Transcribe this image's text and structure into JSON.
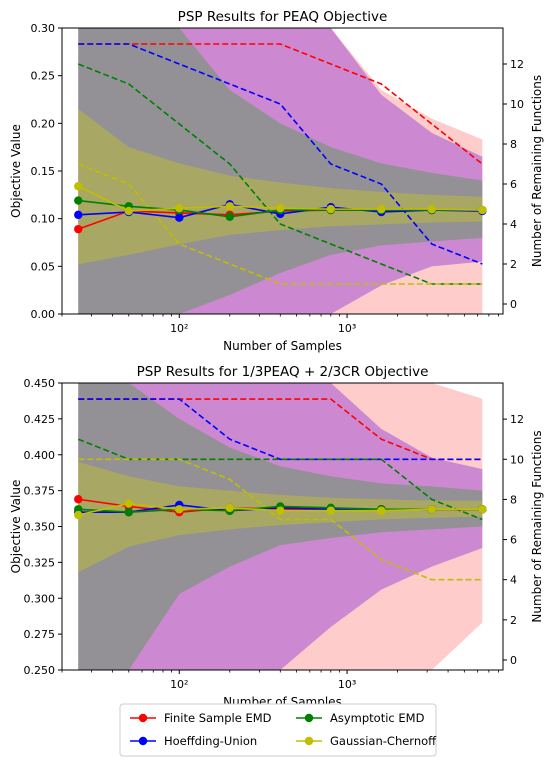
{
  "legend": {
    "items": [
      {
        "label": "Finite Sample EMD",
        "color": "#ff0000"
      },
      {
        "label": "Asymptotic EMD",
        "color": "#008000"
      },
      {
        "label": "Hoeffding-Union",
        "color": "#0000ff"
      },
      {
        "label": "Gaussian-Chernoff",
        "color": "#bfbf00"
      }
    ]
  },
  "chart_data": [
    {
      "type": "line",
      "title": "PSP Results for PEAQ Objective",
      "xlabel": "Number of Samples",
      "ylabel": "Objective Value",
      "y2label": "Number of Remaining Functions",
      "xscale": "log",
      "xlim": [
        20,
        8500
      ],
      "ylim": [
        0.0,
        0.3
      ],
      "y2lim": [
        -0.5,
        13.8
      ],
      "x_ticks": [
        100,
        1000
      ],
      "x_tick_labels": [
        "10²",
        "10³"
      ],
      "y_ticks": [
        0.0,
        0.05,
        0.1,
        0.15,
        0.2,
        0.25,
        0.3
      ],
      "y_tick_labels": [
        "0.00",
        "0.05",
        "0.10",
        "0.15",
        "0.20",
        "0.25",
        "0.30"
      ],
      "y2_ticks": [
        0,
        2,
        4,
        6,
        8,
        10,
        12
      ],
      "y2_tick_labels": [
        "0",
        "2",
        "4",
        "6",
        "8",
        "10",
        "12"
      ],
      "x": [
        25,
        50,
        100,
        200,
        400,
        800,
        1600,
        3200,
        6400
      ],
      "series": [
        {
          "name": "Finite Sample EMD",
          "color": "#ff0000",
          "values": [
            0.089,
            0.108,
            0.106,
            0.104,
            0.108,
            0.109,
            0.109,
            0.109,
            0.109
          ]
        },
        {
          "name": "Hoeffding-Union",
          "color": "#0000ff",
          "values": [
            0.104,
            0.107,
            0.101,
            0.115,
            0.105,
            0.112,
            0.107,
            0.109,
            0.108
          ]
        },
        {
          "name": "Asymptotic EMD",
          "color": "#008000",
          "values": [
            0.119,
            0.113,
            0.109,
            0.102,
            0.109,
            0.109,
            0.109,
            0.109,
            0.109
          ]
        },
        {
          "name": "Gaussian-Chernoff",
          "color": "#bfbf00",
          "values": [
            0.134,
            0.108,
            0.111,
            0.113,
            0.111,
            0.11,
            0.11,
            0.11,
            0.109
          ]
        }
      ],
      "bands": [
        {
          "series": "Finite Sample EMD",
          "color": "#ff9999",
          "upper": [
            0.3,
            0.3,
            0.3,
            0.3,
            0.3,
            0.3,
            0.235,
            0.205,
            0.183
          ],
          "lower": [
            0.0,
            0.0,
            0.0,
            0.0,
            0.0,
            0.0,
            0.0,
            0.0,
            0.0
          ]
        },
        {
          "series": "Hoeffding-Union",
          "color": "#9a46d8",
          "upper": [
            0.3,
            0.3,
            0.3,
            0.3,
            0.3,
            0.3,
            0.23,
            0.19,
            0.165
          ],
          "lower": [
            0.0,
            0.0,
            0.0,
            0.0,
            0.0,
            0.0,
            0.03,
            0.05,
            0.055
          ]
        },
        {
          "series": "Asymptotic EMD",
          "color": "#5a9a5a",
          "upper": [
            0.3,
            0.3,
            0.3,
            0.235,
            0.2,
            0.175,
            0.158,
            0.148,
            0.14
          ],
          "lower": [
            0.0,
            0.0,
            0.0,
            0.02,
            0.043,
            0.062,
            0.072,
            0.076,
            0.08
          ]
        },
        {
          "series": "Gaussian-Chernoff",
          "color": "#bdbd30",
          "upper": [
            0.215,
            0.175,
            0.158,
            0.145,
            0.138,
            0.132,
            0.128,
            0.125,
            0.123
          ],
          "lower": [
            0.052,
            0.062,
            0.073,
            0.083,
            0.088,
            0.092,
            0.094,
            0.096,
            0.097
          ]
        }
      ],
      "remaining_functions": [
        {
          "series": "Finite Sample EMD",
          "color": "#ff0000",
          "values": [
            13,
            13,
            13,
            13,
            13,
            12,
            11,
            9,
            7
          ]
        },
        {
          "series": "Hoeffding-Union",
          "color": "#0000ff",
          "values": [
            13,
            13,
            12,
            11,
            10,
            7,
            6,
            3,
            2
          ]
        },
        {
          "series": "Asymptotic EMD",
          "color": "#008000",
          "values": [
            12,
            11,
            9,
            7,
            4,
            3,
            2,
            1,
            1
          ]
        },
        {
          "series": "Gaussian-Chernoff",
          "color": "#bfbf00",
          "values": [
            7,
            6,
            3,
            2,
            1,
            1,
            1,
            1,
            1
          ]
        }
      ],
      "grid": false
    },
    {
      "type": "line",
      "title": "PSP Results for 1/3PEAQ + 2/3CR Objective",
      "xlabel": "Number of Samples",
      "ylabel": "Objective Value",
      "y2label": "Number of Remaining Functions",
      "xscale": "log",
      "xlim": [
        20,
        8500
      ],
      "ylim": [
        0.25,
        0.45
      ],
      "y2lim": [
        -0.5,
        13.8
      ],
      "x_ticks": [
        100,
        1000
      ],
      "x_tick_labels": [
        "10²",
        "10³"
      ],
      "y_ticks": [
        0.25,
        0.275,
        0.3,
        0.325,
        0.35,
        0.375,
        0.4,
        0.425,
        0.45
      ],
      "y_tick_labels": [
        "0.250",
        "0.275",
        "0.300",
        "0.325",
        "0.350",
        "0.375",
        "0.400",
        "0.425",
        "0.450"
      ],
      "y2_ticks": [
        0,
        2,
        4,
        6,
        8,
        10,
        12
      ],
      "y2_tick_labels": [
        "0",
        "2",
        "4",
        "6",
        "8",
        "10",
        "12"
      ],
      "x": [
        25,
        50,
        100,
        200,
        400,
        800,
        1600,
        3200,
        6400
      ],
      "series": [
        {
          "name": "Finite Sample EMD",
          "color": "#ff0000",
          "values": [
            0.369,
            0.364,
            0.36,
            0.363,
            0.362,
            0.362,
            0.362,
            0.362,
            0.362
          ]
        },
        {
          "name": "Hoeffding-Union",
          "color": "#0000ff",
          "values": [
            0.36,
            0.36,
            0.365,
            0.361,
            0.363,
            0.362,
            0.362,
            0.362,
            0.362
          ]
        },
        {
          "name": "Asymptotic EMD",
          "color": "#008000",
          "values": [
            0.362,
            0.36,
            0.362,
            0.361,
            0.364,
            0.363,
            0.362,
            0.362,
            0.362
          ]
        },
        {
          "name": "Gaussian-Chernoff",
          "color": "#bfbf00",
          "values": [
            0.358,
            0.366,
            0.362,
            0.363,
            0.361,
            0.361,
            0.361,
            0.362,
            0.362
          ]
        }
      ],
      "bands": [
        {
          "series": "Finite Sample EMD",
          "color": "#ff9999",
          "upper": [
            0.45,
            0.45,
            0.45,
            0.45,
            0.45,
            0.45,
            0.45,
            0.45,
            0.439
          ],
          "lower": [
            0.25,
            0.25,
            0.25,
            0.25,
            0.25,
            0.25,
            0.25,
            0.25,
            0.283
          ]
        },
        {
          "series": "Hoeffding-Union",
          "color": "#9a46d8",
          "upper": [
            0.45,
            0.45,
            0.45,
            0.45,
            0.45,
            0.45,
            0.418,
            0.398,
            0.39
          ],
          "lower": [
            0.25,
            0.25,
            0.25,
            0.25,
            0.25,
            0.28,
            0.306,
            0.322,
            0.335
          ]
        },
        {
          "series": "Asymptotic EMD",
          "color": "#5a9a5a",
          "upper": [
            0.45,
            0.45,
            0.425,
            0.405,
            0.392,
            0.385,
            0.38,
            0.378,
            0.375
          ],
          "lower": [
            0.25,
            0.25,
            0.303,
            0.322,
            0.337,
            0.342,
            0.346,
            0.348,
            0.35
          ]
        },
        {
          "series": "Gaussian-Chernoff",
          "color": "#bdbd30",
          "upper": [
            0.395,
            0.385,
            0.378,
            0.375,
            0.372,
            0.37,
            0.369,
            0.368,
            0.368
          ],
          "lower": [
            0.318,
            0.336,
            0.344,
            0.348,
            0.351,
            0.353,
            0.355,
            0.356,
            0.357
          ]
        }
      ],
      "remaining_functions": [
        {
          "series": "Finite Sample EMD",
          "color": "#ff0000",
          "values": [
            13,
            13,
            13,
            13,
            13,
            13,
            11,
            10,
            10
          ]
        },
        {
          "series": "Hoeffding-Union",
          "color": "#0000ff",
          "values": [
            13,
            13,
            13,
            11,
            10,
            10,
            10,
            10,
            10
          ]
        },
        {
          "series": "Asymptotic EMD",
          "color": "#008000",
          "values": [
            11,
            10,
            10,
            10,
            10,
            10,
            10,
            8,
            7
          ]
        },
        {
          "series": "Gaussian-Chernoff",
          "color": "#bfbf00",
          "values": [
            10,
            10,
            10,
            9,
            7,
            7,
            5,
            4,
            4
          ]
        }
      ],
      "grid": false
    }
  ]
}
